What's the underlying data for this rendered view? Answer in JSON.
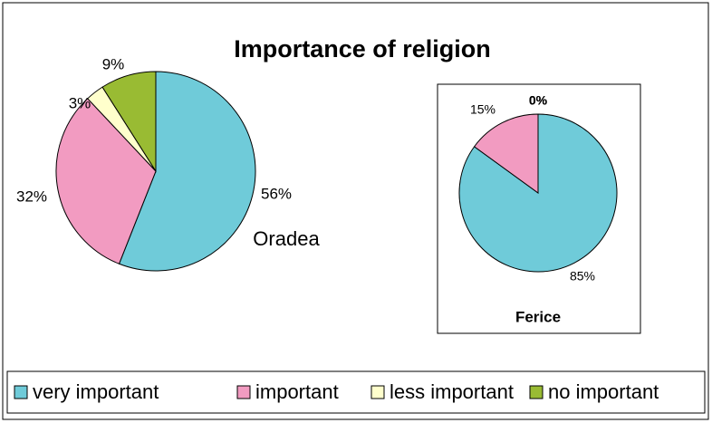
{
  "chart_data": {
    "type": "pie",
    "title": "Importance of religion",
    "categories": [
      "very important",
      "important",
      "less important",
      "no important"
    ],
    "colors": [
      "#6fcbd9",
      "#f29bc1",
      "#ffffcc",
      "#99bb33"
    ],
    "series": [
      {
        "name": "Oradea",
        "values": [
          56,
          32,
          3,
          9
        ],
        "value_labels": [
          "56%",
          "32%",
          "3%",
          "9%"
        ]
      },
      {
        "name": "Ferice",
        "values": [
          85,
          15,
          0,
          0
        ],
        "value_labels": [
          "85%",
          "15%",
          "0%",
          "0%"
        ]
      }
    ],
    "legend": "bottom"
  }
}
